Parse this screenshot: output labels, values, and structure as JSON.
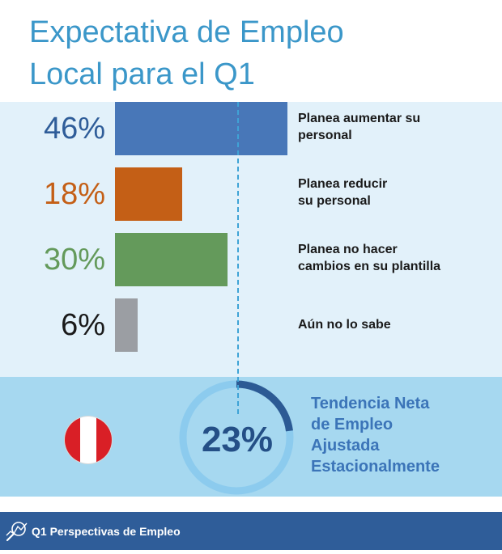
{
  "header": {
    "title_line1": "Expectativa de Empleo",
    "title_line2": "Local para el Q1"
  },
  "chart_data": {
    "type": "bar",
    "orientation": "horizontal",
    "unit": "%",
    "xlim": [
      0,
      50
    ],
    "items": [
      {
        "value": 46,
        "display": "46%",
        "label_lines": [
          "Planea aumentar su",
          "personal"
        ],
        "color": "#4877b8"
      },
      {
        "value": 18,
        "display": "18%",
        "label_lines": [
          "Planea reducir",
          "su personal"
        ],
        "color": "#c45f16"
      },
      {
        "value": 30,
        "display": "30%",
        "label_lines": [
          "Planea no hacer",
          "cambios en su plantilla"
        ],
        "color": "#649a5b"
      },
      {
        "value": 6,
        "display": "6%",
        "label_lines": [
          "Aún no lo sabe"
        ],
        "color": "#9b9ea3"
      }
    ]
  },
  "summary": {
    "net_value": 23,
    "net_display": "23%",
    "label_lines": [
      "Tendencia Neta",
      "de Empleo",
      "Ajustada",
      "Estacionalmente"
    ],
    "country_flag": "peru-flag-icon",
    "flag_colors": [
      "#d91f26",
      "#ffffff",
      "#d91f26"
    ],
    "ring_colors": {
      "track": "#8ccbee",
      "fill": "#2c5a94"
    }
  },
  "footer": {
    "text": "Q1 Perspectivas de Empleo",
    "icon": "magnifier-chart-icon"
  },
  "pct_colors": [
    "#2f5d99",
    "#c45f16",
    "#649a5b",
    "#1a1a1a"
  ]
}
